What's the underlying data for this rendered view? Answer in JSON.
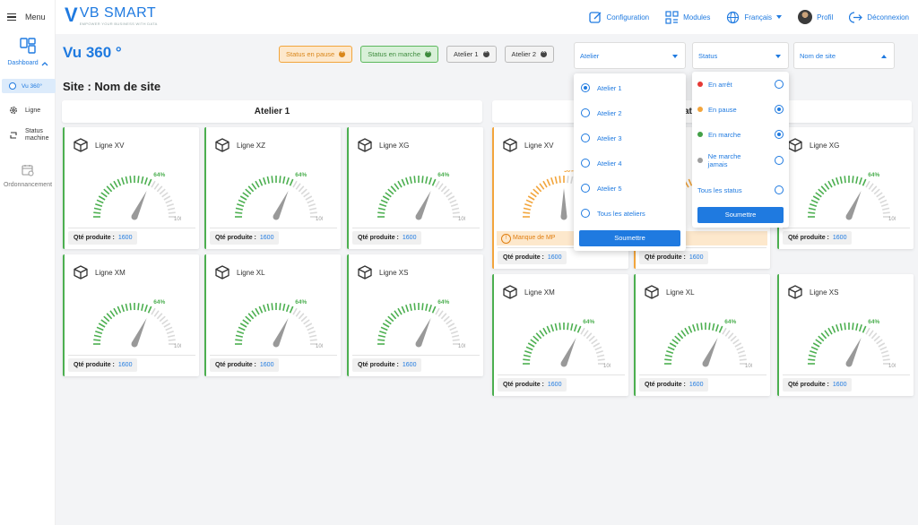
{
  "sidebar": {
    "menu_label": "Menu",
    "dashboard_label": "Dashboard",
    "items": [
      {
        "label": "Vu 360°"
      },
      {
        "label": "Ligne"
      },
      {
        "label": "Status machine"
      },
      {
        "label": "Ordonnancement"
      }
    ]
  },
  "header": {
    "logo_mark": "V",
    "logo_name": "VB SMART",
    "logo_tagline": "EMPOWER YOUR BUSINESS WITH DATA",
    "nav": [
      {
        "label": "Configuration"
      },
      {
        "label": "Modules"
      },
      {
        "label": "Français"
      },
      {
        "label": "Profil"
      },
      {
        "label": "Déconnexion"
      }
    ]
  },
  "page": {
    "title": "Vu 360 °",
    "site_title": "Site  :  Nom de site",
    "chips": [
      "Status en pause",
      "Status en marche",
      "Atelier 1",
      "Atelier 2"
    ]
  },
  "filters": {
    "atelier_label": "Atelier",
    "status_label": "Status",
    "site_label": "Nom de site"
  },
  "atelier_dropdown": {
    "options": [
      "Atelier 1",
      "Atelier 2",
      "Atelier 3",
      "Atelier 4",
      "Atelier 5",
      "Tous les ateliers"
    ],
    "selected_index": 0,
    "submit_label": "Soumettre"
  },
  "status_dropdown": {
    "options": [
      {
        "label": "En arrêt",
        "color": "#e53935",
        "selected": false
      },
      {
        "label": "En pause",
        "color": "#f2a53c",
        "selected": true
      },
      {
        "label": "En marche",
        "color": "#43a047",
        "selected": true
      },
      {
        "label": "Ne marche jamais",
        "color": "#9e9e9e",
        "selected": false
      },
      {
        "label": "Tous les status",
        "color": "",
        "selected": false
      }
    ],
    "submit_label": "Soumettre"
  },
  "groups": {
    "atelier1_title": "Atelier 1",
    "atelier2_title_fragment": "at"
  },
  "gauge_max_label": "100%",
  "qty_label": "Qté produite :",
  "warning_text": "Manque de MP",
  "warning_text_partial": "de MP",
  "cards": [
    {
      "name": "Ligne XV",
      "value": 64,
      "qty": "1600",
      "status": "green"
    },
    {
      "name": "Ligne XZ",
      "value": 64,
      "qty": "1600",
      "status": "green"
    },
    {
      "name": "Ligne XG",
      "value": 64,
      "qty": "1600",
      "status": "green"
    },
    {
      "name": "Ligne XM",
      "value": 64,
      "qty": "1600",
      "status": "green"
    },
    {
      "name": "Ligne XL",
      "value": 64,
      "qty": "1600",
      "status": "green"
    },
    {
      "name": "Ligne XS",
      "value": 64,
      "qty": "1600",
      "status": "green"
    },
    {
      "name": "Ligne XV",
      "value": 50,
      "qty": "1600",
      "status": "orange"
    },
    {
      "name": "",
      "value": 50,
      "qty": "1600",
      "status": "orange"
    },
    {
      "name": "Ligne XG",
      "value": 64,
      "qty": "1600",
      "status": "green"
    },
    {
      "name": "Ligne XM",
      "value": 64,
      "qty": "1600",
      "status": "green"
    },
    {
      "name": "Ligne XL",
      "value": 64,
      "qty": "1600",
      "status": "green"
    },
    {
      "name": "Ligne XS",
      "value": 64,
      "qty": "1600",
      "status": "green"
    }
  ],
  "colors": {
    "accent": "#1f7ae0",
    "green": "#4caf50",
    "orange": "#f2a53c"
  }
}
